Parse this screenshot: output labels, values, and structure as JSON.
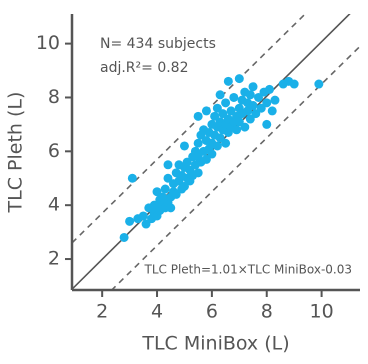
{
  "chart_data": {
    "type": "scatter",
    "x_label": "TLC MiniBox (L)",
    "y_label": "TLC Pleth (L)",
    "annotations": [
      "N= 434 subjects",
      "adj.R²= 0.82"
    ],
    "fit_line": {
      "slope": 1.01,
      "intercept": -0.03,
      "label": "TLC Pleth=1.01×TLC MiniBox-0.03"
    },
    "agreement_offsets": [
      1.7,
      -1.5
    ],
    "identity_line": true,
    "color": "#1ab0e8",
    "xlim": [
      0.9,
      11.4
    ],
    "ylim": [
      0.85,
      11.1
    ],
    "xticks": [
      2,
      4,
      6,
      8,
      10
    ],
    "yticks": [
      2,
      4,
      6,
      8,
      10
    ],
    "x": [
      2.8,
      3.0,
      3.1,
      3.3,
      3.5,
      3.6,
      3.7,
      3.8,
      3.9,
      3.9,
      4.0,
      4.0,
      4.1,
      4.1,
      4.2,
      4.2,
      4.3,
      4.3,
      4.4,
      4.4,
      4.5,
      4.5,
      4.6,
      4.6,
      4.7,
      4.7,
      4.8,
      4.8,
      4.9,
      4.9,
      5.0,
      5.0,
      5.0,
      5.1,
      5.1,
      5.2,
      5.2,
      5.3,
      5.3,
      5.4,
      5.4,
      5.5,
      5.5,
      5.5,
      5.6,
      5.6,
      5.7,
      5.7,
      5.8,
      5.8,
      5.8,
      5.9,
      5.9,
      6.0,
      6.0,
      6.0,
      6.1,
      6.1,
      6.2,
      6.2,
      6.2,
      6.3,
      6.3,
      6.4,
      6.4,
      6.5,
      6.5,
      6.5,
      6.6,
      6.6,
      6.7,
      6.7,
      6.8,
      6.8,
      6.9,
      6.9,
      7.0,
      7.0,
      7.1,
      7.1,
      7.2,
      7.2,
      7.3,
      7.3,
      7.4,
      7.4,
      7.5,
      7.5,
      7.6,
      7.7,
      7.8,
      7.9,
      8.0,
      8.0,
      8.1,
      8.2,
      8.3,
      8.6,
      8.8,
      9.0,
      9.9,
      6.3,
      5.5,
      6.6,
      7.0,
      4.4
    ],
    "y": [
      2.8,
      3.4,
      5.0,
      3.5,
      3.6,
      3.3,
      3.9,
      3.5,
      4.0,
      3.7,
      4.5,
      3.6,
      4.2,
      3.8,
      4.3,
      4.0,
      3.9,
      4.6,
      4.1,
      5.0,
      4.3,
      3.9,
      4.8,
      4.5,
      5.2,
      4.4,
      4.9,
      5.5,
      4.6,
      5.1,
      5.4,
      4.7,
      6.2,
      5.0,
      5.6,
      5.3,
      4.9,
      5.8,
      5.1,
      6.0,
      5.5,
      5.2,
      6.3,
      5.8,
      6.6,
      5.6,
      6.0,
      6.8,
      5.7,
      6.4,
      7.5,
      6.1,
      6.7,
      6.3,
      5.9,
      7.0,
      6.6,
      7.3,
      6.2,
      6.9,
      7.6,
      6.5,
      7.1,
      6.8,
      7.4,
      6.3,
      7.0,
      7.8,
      6.7,
      7.2,
      7.5,
      6.9,
      7.1,
      8.0,
      7.3,
      6.8,
      7.6,
      7.1,
      7.9,
      7.4,
      6.9,
      8.2,
      7.5,
      7.8,
      8.1,
      7.2,
      7.7,
      8.4,
      7.4,
      8.0,
      7.6,
      8.2,
      7.0,
      7.8,
      8.3,
      7.5,
      7.9,
      8.5,
      8.6,
      8.5,
      8.5,
      8.1,
      7.3,
      8.6,
      8.7,
      5.5
    ]
  }
}
